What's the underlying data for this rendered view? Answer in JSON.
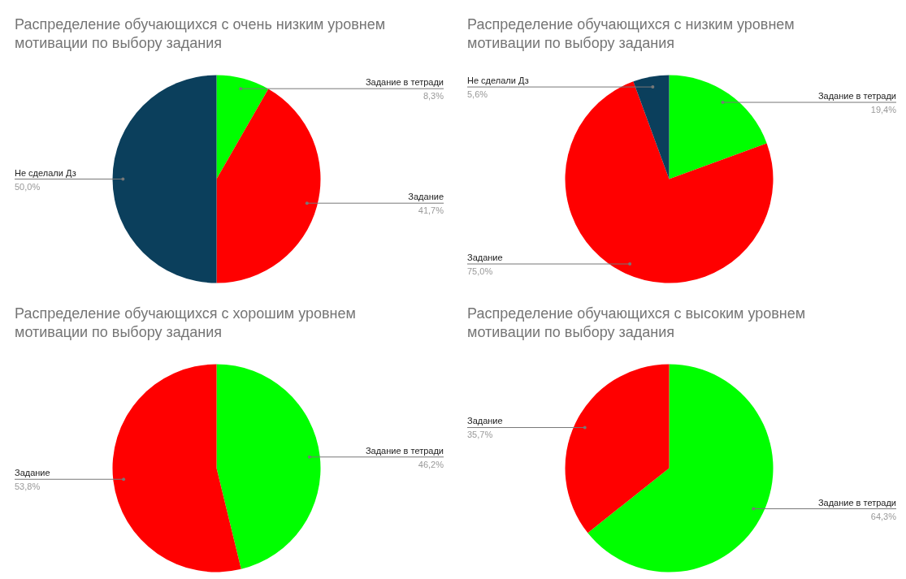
{
  "chart_data": [
    {
      "type": "pie",
      "title": "Распределение обучающихся с очень низким уровнем мотивации по выбору задания",
      "categories": [
        "Задание в тетради",
        "Задание",
        "Не сделали Дз"
      ],
      "values": [
        8.3,
        41.7,
        50.0
      ],
      "colors": [
        "#00ff00",
        "#ff0000",
        "#0b3f5c"
      ],
      "value_labels": [
        "8,3%",
        "41,7%",
        "50,0%"
      ]
    },
    {
      "type": "pie",
      "title": "Распределение обучающихся с низким уровнем мотивации по выбору задания",
      "categories": [
        "Задание в тетради",
        "Задание",
        "Не сделали Дз"
      ],
      "values": [
        19.4,
        75.0,
        5.6
      ],
      "colors": [
        "#00ff00",
        "#ff0000",
        "#0b3f5c"
      ],
      "value_labels": [
        "19,4%",
        "75,0%",
        "5,6%"
      ]
    },
    {
      "type": "pie",
      "title": "Распределение обучающихся с хорошим уровнем мотивации по выбору задания",
      "categories": [
        "Задание в тетради",
        "Задание"
      ],
      "values": [
        46.2,
        53.8
      ],
      "colors": [
        "#00ff00",
        "#ff0000"
      ],
      "value_labels": [
        "46,2%",
        "53,8%"
      ]
    },
    {
      "type": "pie",
      "title": "Распределение обучающихся с высоким уровнем мотивации по выбору задания",
      "categories": [
        "Задание в тетради",
        "Задание"
      ],
      "values": [
        64.3,
        35.7
      ],
      "colors": [
        "#00ff00",
        "#ff0000"
      ],
      "value_labels": [
        "64,3%",
        "35,7%"
      ]
    }
  ]
}
